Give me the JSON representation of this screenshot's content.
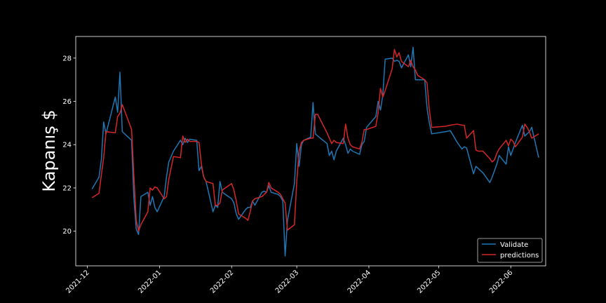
{
  "chart_data": {
    "type": "line",
    "title": "",
    "xlabel": "",
    "ylabel": "Kapanış $",
    "xlim": [
      "2021-11-26",
      "2022-06-16"
    ],
    "ylim": [
      18.4,
      29.0
    ],
    "x_ticks": [
      "2021-12-01",
      "2022-01-01",
      "2022-02-01",
      "2022-03-01",
      "2022-04-01",
      "2022-05-01",
      "2022-06-01"
    ],
    "x_tick_labels": [
      "2021-12",
      "2022-01",
      "2022-02",
      "2022-03",
      "2022-04",
      "2022-05",
      "2022-06"
    ],
    "y_ticks": [
      20,
      22,
      24,
      26,
      28
    ],
    "y_tick_labels": [
      "20",
      "22",
      "24",
      "26",
      "28"
    ],
    "grid": false,
    "legend": "lower-right",
    "background": "#000000",
    "series": [
      {
        "name": "Validate",
        "color": "#1f77b4",
        "points": [
          [
            "2021-12-03",
            21.95
          ],
          [
            "2021-12-06",
            22.5
          ],
          [
            "2021-12-07",
            23.3
          ],
          [
            "2021-12-08",
            25.05
          ],
          [
            "2021-12-09",
            24.5
          ],
          [
            "2021-12-13",
            26.2
          ],
          [
            "2021-12-14",
            25.5
          ],
          [
            "2021-12-15",
            27.35
          ],
          [
            "2021-12-16",
            24.6
          ],
          [
            "2021-12-20",
            24.2
          ],
          [
            "2021-12-21",
            21.5
          ],
          [
            "2021-12-22",
            20.1
          ],
          [
            "2021-12-23",
            19.85
          ],
          [
            "2021-12-24",
            21.6
          ],
          [
            "2021-12-27",
            21.8
          ],
          [
            "2021-12-28",
            21.2
          ],
          [
            "2021-12-29",
            21.6
          ],
          [
            "2021-12-30",
            21.1
          ],
          [
            "2021-12-31",
            20.9
          ],
          [
            "2022-01-03",
            21.6
          ],
          [
            "2022-01-04",
            22.5
          ],
          [
            "2022-01-05",
            23.2
          ],
          [
            "2022-01-07",
            23.7
          ],
          [
            "2022-01-10",
            24.2
          ],
          [
            "2022-01-11",
            24.0
          ],
          [
            "2022-01-12",
            24.3
          ],
          [
            "2022-01-13",
            24.1
          ],
          [
            "2022-01-14",
            24.25
          ],
          [
            "2022-01-17",
            24.2
          ],
          [
            "2022-01-18",
            22.8
          ],
          [
            "2022-01-19",
            23.0
          ],
          [
            "2022-01-20",
            22.5
          ],
          [
            "2022-01-21",
            22.3
          ],
          [
            "2022-01-24",
            20.9
          ],
          [
            "2022-01-25",
            21.2
          ],
          [
            "2022-01-26",
            21.1
          ],
          [
            "2022-01-27",
            22.3
          ],
          [
            "2022-01-28",
            21.8
          ],
          [
            "2022-02-01",
            21.5
          ],
          [
            "2022-02-02",
            21.3
          ],
          [
            "2022-02-03",
            20.8
          ],
          [
            "2022-02-04",
            20.55
          ],
          [
            "2022-02-07",
            21.0
          ],
          [
            "2022-02-08",
            21.1
          ],
          [
            "2022-02-09",
            21.1
          ],
          [
            "2022-02-10",
            21.4
          ],
          [
            "2022-02-11",
            21.2
          ],
          [
            "2022-02-14",
            21.8
          ],
          [
            "2022-02-15",
            21.85
          ],
          [
            "2022-02-16",
            21.8
          ],
          [
            "2022-02-17",
            22.1
          ],
          [
            "2022-02-18",
            21.8
          ],
          [
            "2022-02-21",
            21.7
          ],
          [
            "2022-02-22",
            21.6
          ],
          [
            "2022-02-23",
            21.4
          ],
          [
            "2022-02-24",
            18.85
          ],
          [
            "2022-02-25",
            20.5
          ],
          [
            "2022-02-28",
            22.2
          ],
          [
            "2022-03-01",
            24.05
          ],
          [
            "2022-03-02",
            23.0
          ],
          [
            "2022-03-03",
            24.0
          ],
          [
            "2022-03-04",
            24.2
          ],
          [
            "2022-03-07",
            24.35
          ],
          [
            "2022-03-08",
            25.95
          ],
          [
            "2022-03-09",
            24.5
          ],
          [
            "2022-03-10",
            24.4
          ],
          [
            "2022-03-14",
            24.05
          ],
          [
            "2022-03-15",
            23.5
          ],
          [
            "2022-03-16",
            23.7
          ],
          [
            "2022-03-17",
            23.3
          ],
          [
            "2022-03-18",
            23.7
          ],
          [
            "2022-03-21",
            24.3
          ],
          [
            "2022-03-22",
            24.0
          ],
          [
            "2022-03-23",
            23.6
          ],
          [
            "2022-03-24",
            23.8
          ],
          [
            "2022-03-25",
            23.7
          ],
          [
            "2022-03-28",
            23.55
          ],
          [
            "2022-03-29",
            24.0
          ],
          [
            "2022-03-30",
            24.15
          ],
          [
            "2022-03-31",
            24.8
          ],
          [
            "2022-04-04",
            25.3
          ],
          [
            "2022-04-05",
            26.0
          ],
          [
            "2022-04-06",
            25.6
          ],
          [
            "2022-04-07",
            26.3
          ],
          [
            "2022-04-08",
            27.95
          ],
          [
            "2022-04-11",
            28.0
          ],
          [
            "2022-04-12",
            27.85
          ],
          [
            "2022-04-13",
            27.9
          ],
          [
            "2022-04-14",
            27.85
          ],
          [
            "2022-04-15",
            27.55
          ],
          [
            "2022-04-18",
            28.15
          ],
          [
            "2022-04-19",
            27.6
          ],
          [
            "2022-04-20",
            28.5
          ],
          [
            "2022-04-21",
            27.0
          ],
          [
            "2022-04-22",
            27.0
          ],
          [
            "2022-04-25",
            27.0
          ],
          [
            "2022-04-26",
            25.7
          ],
          [
            "2022-04-27",
            25.0
          ],
          [
            "2022-04-28",
            24.5
          ],
          [
            "2022-05-04",
            24.6
          ],
          [
            "2022-05-06",
            24.65
          ],
          [
            "2022-05-09",
            24.1
          ],
          [
            "2022-05-11",
            23.8
          ],
          [
            "2022-05-12",
            23.9
          ],
          [
            "2022-05-13",
            23.85
          ],
          [
            "2022-05-16",
            22.65
          ],
          [
            "2022-05-17",
            23.0
          ],
          [
            "2022-05-18",
            22.9
          ],
          [
            "2022-05-20",
            22.7
          ],
          [
            "2022-05-23",
            22.25
          ],
          [
            "2022-05-24",
            22.5
          ],
          [
            "2022-05-25",
            22.8
          ],
          [
            "2022-05-26",
            23.1
          ],
          [
            "2022-05-27",
            23.5
          ],
          [
            "2022-05-30",
            23.1
          ],
          [
            "2022-05-31",
            23.9
          ],
          [
            "2022-06-01",
            23.5
          ],
          [
            "2022-06-02",
            23.8
          ],
          [
            "2022-06-03",
            24.1
          ],
          [
            "2022-06-06",
            24.9
          ],
          [
            "2022-06-07",
            24.4
          ],
          [
            "2022-06-08",
            24.5
          ],
          [
            "2022-06-09",
            24.6
          ],
          [
            "2022-06-10",
            24.8
          ],
          [
            "2022-06-13",
            23.4
          ]
        ]
      },
      {
        "name": "predictions",
        "color": "#d62728",
        "points": [
          [
            "2021-12-03",
            21.55
          ],
          [
            "2021-12-06",
            21.75
          ],
          [
            "2021-12-07",
            22.6
          ],
          [
            "2021-12-08",
            23.4
          ],
          [
            "2021-12-09",
            24.6
          ],
          [
            "2021-12-13",
            24.55
          ],
          [
            "2021-12-14",
            25.3
          ],
          [
            "2021-12-15",
            25.45
          ],
          [
            "2021-12-16",
            25.85
          ],
          [
            "2021-12-20",
            24.7
          ],
          [
            "2021-12-21",
            22.5
          ],
          [
            "2021-12-22",
            20.5
          ],
          [
            "2021-12-23",
            20.0
          ],
          [
            "2021-12-24",
            20.3
          ],
          [
            "2021-12-27",
            20.9
          ],
          [
            "2021-12-28",
            22.0
          ],
          [
            "2021-12-29",
            21.9
          ],
          [
            "2021-12-30",
            22.05
          ],
          [
            "2021-12-31",
            22.0
          ],
          [
            "2022-01-03",
            21.5
          ],
          [
            "2022-01-04",
            21.6
          ],
          [
            "2022-01-05",
            22.4
          ],
          [
            "2022-01-07",
            23.45
          ],
          [
            "2022-01-10",
            23.4
          ],
          [
            "2022-01-11",
            24.4
          ],
          [
            "2022-01-12",
            24.1
          ],
          [
            "2022-01-13",
            24.25
          ],
          [
            "2022-01-14",
            24.15
          ],
          [
            "2022-01-17",
            24.15
          ],
          [
            "2022-01-18",
            24.1
          ],
          [
            "2022-01-19",
            23.1
          ],
          [
            "2022-01-20",
            22.5
          ],
          [
            "2022-01-21",
            22.3
          ],
          [
            "2022-01-24",
            22.2
          ],
          [
            "2022-01-25",
            21.2
          ],
          [
            "2022-01-26",
            21.2
          ],
          [
            "2022-01-27",
            21.3
          ],
          [
            "2022-01-28",
            21.9
          ],
          [
            "2022-02-01",
            22.2
          ],
          [
            "2022-02-02",
            21.9
          ],
          [
            "2022-02-03",
            21.4
          ],
          [
            "2022-02-04",
            20.8
          ],
          [
            "2022-02-07",
            20.6
          ],
          [
            "2022-02-08",
            20.5
          ],
          [
            "2022-02-09",
            20.9
          ],
          [
            "2022-02-10",
            21.4
          ],
          [
            "2022-02-11",
            21.5
          ],
          [
            "2022-02-14",
            21.6
          ],
          [
            "2022-02-15",
            21.7
          ],
          [
            "2022-02-16",
            21.8
          ],
          [
            "2022-02-17",
            22.25
          ],
          [
            "2022-02-18",
            22.0
          ],
          [
            "2022-02-21",
            21.8
          ],
          [
            "2022-02-22",
            21.7
          ],
          [
            "2022-02-23",
            21.5
          ],
          [
            "2022-02-24",
            21.3
          ],
          [
            "2022-02-25",
            20.05
          ],
          [
            "2022-02-28",
            20.3
          ],
          [
            "2022-03-01",
            22.3
          ],
          [
            "2022-03-02",
            23.7
          ],
          [
            "2022-03-03",
            24.1
          ],
          [
            "2022-03-04",
            24.2
          ],
          [
            "2022-03-07",
            24.3
          ],
          [
            "2022-03-08",
            24.3
          ],
          [
            "2022-03-09",
            25.4
          ],
          [
            "2022-03-10",
            25.4
          ],
          [
            "2022-03-14",
            24.55
          ],
          [
            "2022-03-15",
            24.3
          ],
          [
            "2022-03-16",
            24.05
          ],
          [
            "2022-03-17",
            24.2
          ],
          [
            "2022-03-18",
            24.1
          ],
          [
            "2022-03-21",
            24.05
          ],
          [
            "2022-03-22",
            24.95
          ],
          [
            "2022-03-23",
            24.3
          ],
          [
            "2022-03-24",
            24.0
          ],
          [
            "2022-03-25",
            23.9
          ],
          [
            "2022-03-28",
            23.8
          ],
          [
            "2022-03-29",
            24.1
          ],
          [
            "2022-03-30",
            24.7
          ],
          [
            "2022-03-31",
            24.7
          ],
          [
            "2022-04-04",
            24.85
          ],
          [
            "2022-04-05",
            25.5
          ],
          [
            "2022-04-06",
            26.6
          ],
          [
            "2022-04-07",
            26.2
          ],
          [
            "2022-04-08",
            26.5
          ],
          [
            "2022-04-11",
            27.5
          ],
          [
            "2022-04-12",
            28.4
          ],
          [
            "2022-04-13",
            28.05
          ],
          [
            "2022-04-14",
            28.25
          ],
          [
            "2022-04-15",
            27.85
          ],
          [
            "2022-04-18",
            27.6
          ],
          [
            "2022-04-19",
            27.9
          ],
          [
            "2022-04-20",
            27.6
          ],
          [
            "2022-04-21",
            27.45
          ],
          [
            "2022-04-22",
            27.2
          ],
          [
            "2022-04-25",
            27.0
          ],
          [
            "2022-04-26",
            26.85
          ],
          [
            "2022-04-27",
            25.6
          ],
          [
            "2022-04-28",
            24.8
          ],
          [
            "2022-05-04",
            24.85
          ],
          [
            "2022-05-06",
            24.9
          ],
          [
            "2022-05-09",
            24.95
          ],
          [
            "2022-05-11",
            24.9
          ],
          [
            "2022-05-12",
            24.9
          ],
          [
            "2022-05-13",
            24.3
          ],
          [
            "2022-05-16",
            24.65
          ],
          [
            "2022-05-17",
            23.75
          ],
          [
            "2022-05-18",
            23.7
          ],
          [
            "2022-05-20",
            23.7
          ],
          [
            "2022-05-23",
            23.35
          ],
          [
            "2022-05-24",
            23.2
          ],
          [
            "2022-05-25",
            23.3
          ],
          [
            "2022-05-26",
            23.6
          ],
          [
            "2022-05-27",
            23.8
          ],
          [
            "2022-05-30",
            24.2
          ],
          [
            "2022-05-31",
            23.95
          ],
          [
            "2022-06-01",
            24.25
          ],
          [
            "2022-06-02",
            24.15
          ],
          [
            "2022-06-03",
            23.9
          ],
          [
            "2022-06-06",
            24.35
          ],
          [
            "2022-06-07",
            24.95
          ],
          [
            "2022-06-08",
            24.8
          ],
          [
            "2022-06-09",
            24.6
          ],
          [
            "2022-06-10",
            24.3
          ],
          [
            "2022-06-13",
            24.5
          ]
        ]
      }
    ]
  }
}
